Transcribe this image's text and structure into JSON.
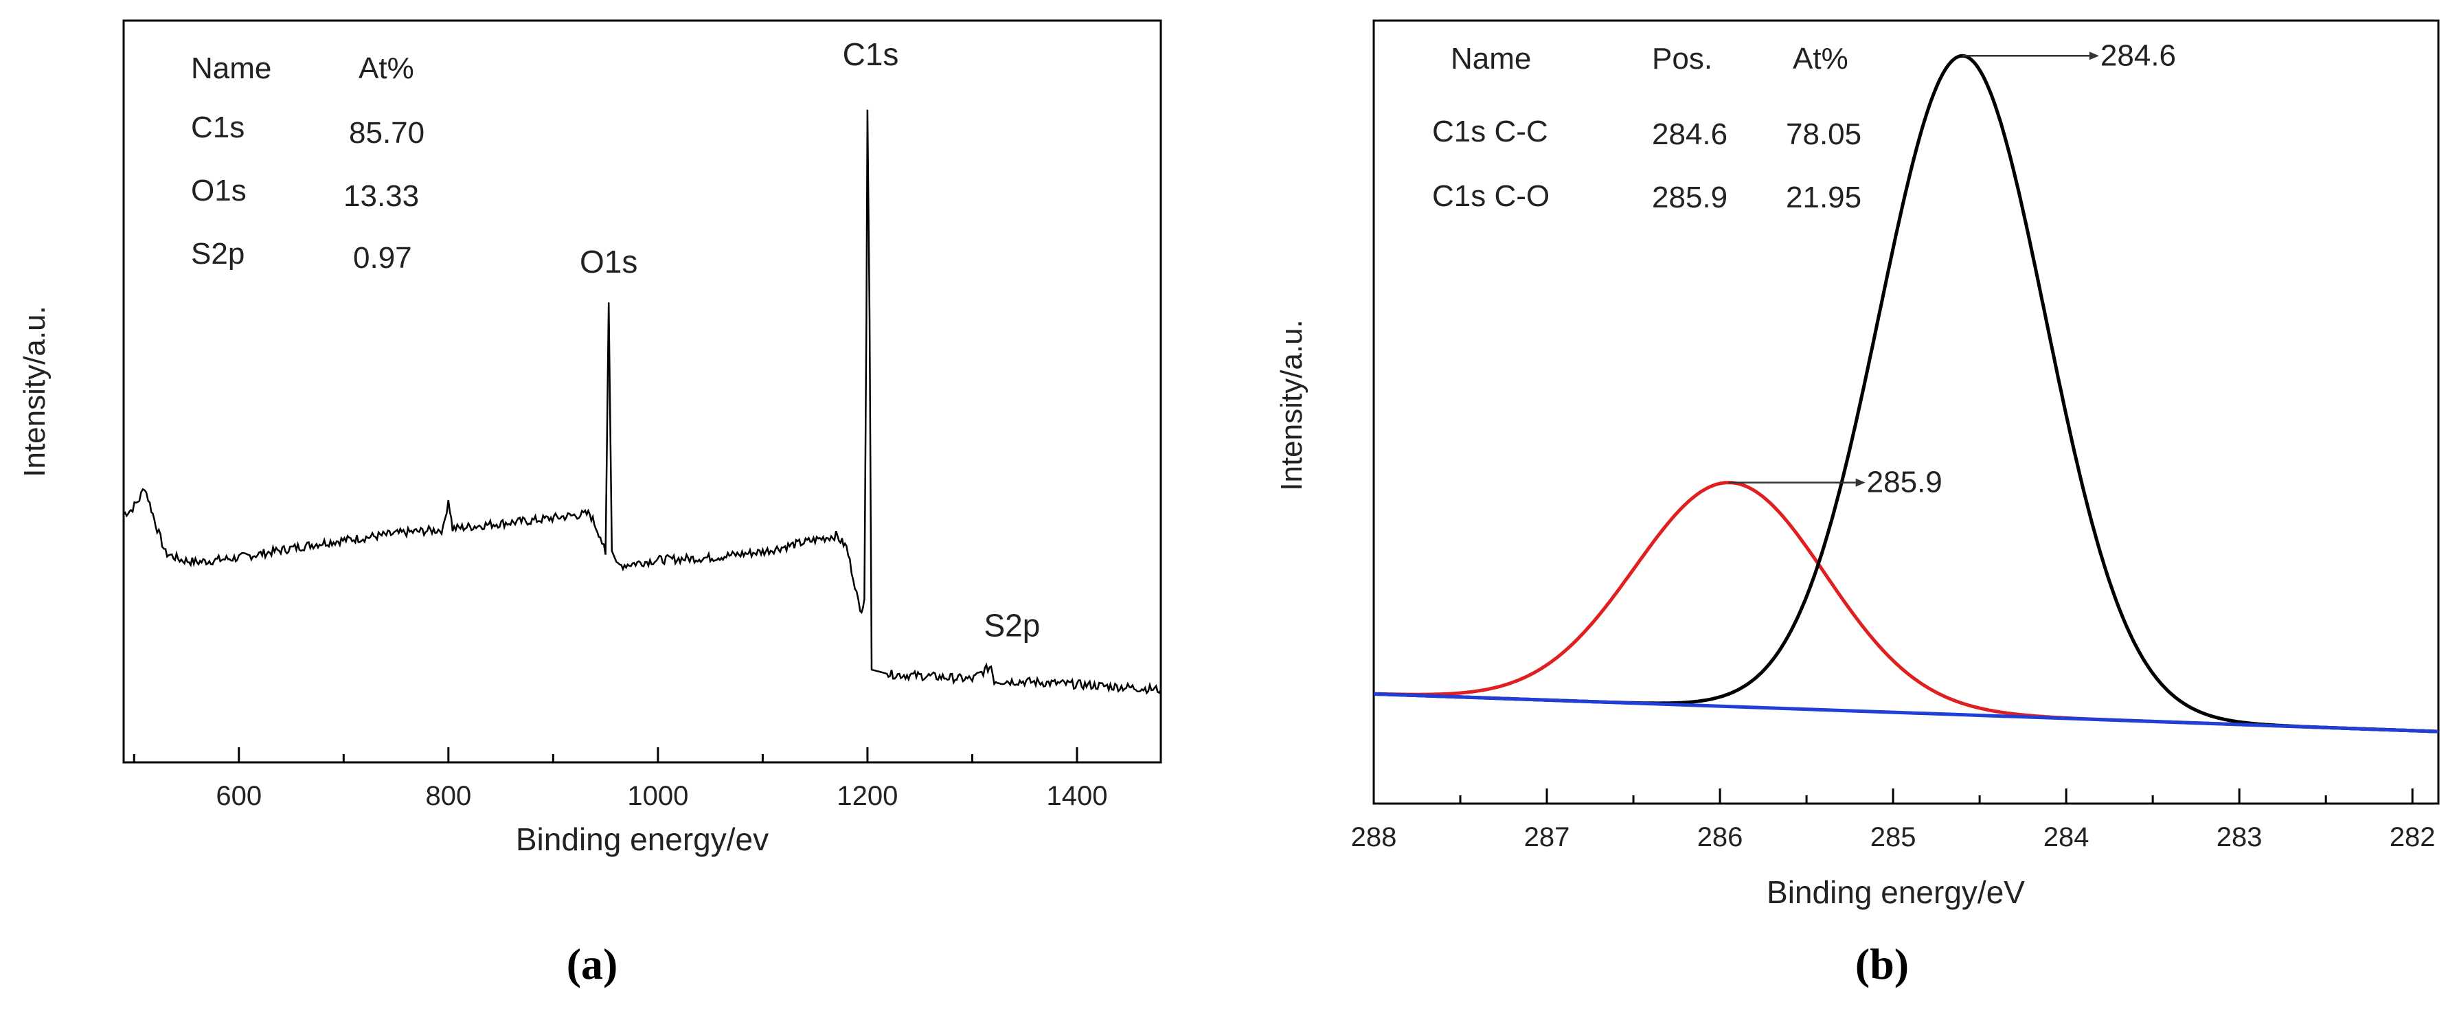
{
  "chart_data": [
    {
      "type": "line",
      "panel_label": "(a)",
      "xlabel": "Binding energy/ev",
      "ylabel": "Intensity/a.u.",
      "xlim": [
        490,
        1480
      ],
      "ylim": [
        0,
        100
      ],
      "x_ticks": [
        600,
        800,
        1000,
        1200,
        1400
      ],
      "x_tick_labels": [
        "600",
        "800",
        "1000",
        "1200",
        "1400"
      ],
      "series": [
        {
          "name": "survey",
          "color": "#000000",
          "points": [
            [
              490,
              33.5
            ],
            [
              497,
              34.0
            ],
            [
              505,
              35.5
            ],
            [
              510,
              37.2
            ],
            [
              515,
              34.8
            ],
            [
              522,
              31.5
            ],
            [
              530,
              28.2
            ],
            [
              545,
              27.3
            ],
            [
              560,
              27.0
            ],
            [
              600,
              27.6
            ],
            [
              640,
              28.6
            ],
            [
              680,
              29.6
            ],
            [
              720,
              30.3
            ],
            [
              760,
              31.0
            ],
            [
              795,
              31.4
            ],
            [
              800,
              35.5
            ],
            [
              804,
              31.5
            ],
            [
              840,
              32.1
            ],
            [
              880,
              32.6
            ],
            [
              920,
              33.3
            ],
            [
              935,
              33.5
            ],
            [
              945,
              30.5
            ],
            [
              950,
              28.0
            ],
            [
              953,
              62.0
            ],
            [
              956,
              28.5
            ],
            [
              962,
              26.5
            ],
            [
              1000,
              27.3
            ],
            [
              1050,
              27.6
            ],
            [
              1100,
              28.4
            ],
            [
              1150,
              30.0
            ],
            [
              1170,
              30.6
            ],
            [
              1180,
              29.0
            ],
            [
              1188,
              24.0
            ],
            [
              1193,
              20.2
            ],
            [
              1197,
              22.0
            ],
            [
              1199,
              60.0
            ],
            [
              1200,
              88.0
            ],
            [
              1202,
              60.0
            ],
            [
              1204,
              12.5
            ],
            [
              1220,
              11.9
            ],
            [
              1260,
              11.6
            ],
            [
              1300,
              11.2
            ],
            [
              1318,
              13.0
            ],
            [
              1321,
              11.0
            ],
            [
              1350,
              10.9
            ],
            [
              1400,
              10.5
            ],
            [
              1450,
              10.1
            ],
            [
              1480,
              9.8
            ]
          ]
        }
      ],
      "peak_labels": [
        {
          "text": "O1s",
          "x": 953,
          "y": 66
        },
        {
          "text": "C1s",
          "x": 1203,
          "y": 94
        },
        {
          "text": "S2p",
          "x": 1338,
          "y": 17
        }
      ],
      "table": {
        "headers": [
          "Name",
          "At%"
        ],
        "rows": [
          [
            "C1s",
            "85.70"
          ],
          [
            "O1s",
            "13.33"
          ],
          [
            "S2p",
            "0.97"
          ]
        ]
      }
    },
    {
      "type": "line",
      "panel_label": "(b)",
      "xlabel": "Binding energy/eV",
      "ylabel": "Intensity/a.u.",
      "xlim": [
        288,
        281.85
      ],
      "ylim": [
        0,
        100
      ],
      "x_ticks": [
        288,
        287,
        286,
        285,
        284,
        283,
        282
      ],
      "x_tick_labels": [
        "288",
        "287",
        "286",
        "285",
        "284",
        "283",
        "282"
      ],
      "series": [
        {
          "name": "C1s C-C",
          "color": "#000000",
          "center": 284.6,
          "peak_y": 95.5,
          "sigma": 0.48
        },
        {
          "name": "C1s C-O",
          "color": "#e02020",
          "center": 285.95,
          "peak_y": 41,
          "sigma": 0.55
        },
        {
          "name": "background",
          "color": "#1f3fd8",
          "points": [
            [
              288,
              14.0
            ],
            [
              281.85,
              9.2
            ]
          ]
        }
      ],
      "annotations": [
        {
          "text": "284.6",
          "x": 284.6,
          "y": 95.5
        },
        {
          "text": "285.9",
          "x": 285.95,
          "y": 41
        }
      ],
      "table": {
        "headers": [
          "Name",
          "Pos.",
          "At%"
        ],
        "rows": [
          [
            "C1s C-C",
            "284.6",
            "78.05"
          ],
          [
            "C1s C-O",
            "285.9",
            "21.95"
          ]
        ]
      }
    }
  ]
}
